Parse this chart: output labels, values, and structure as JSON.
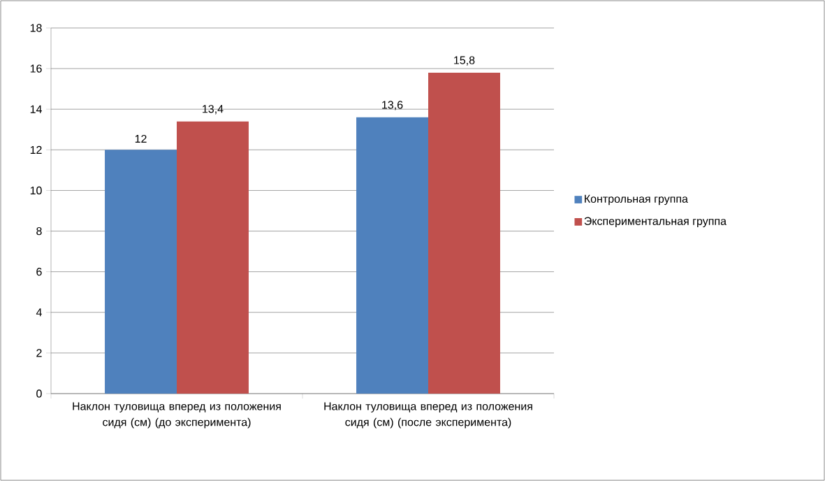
{
  "chart_data": {
    "type": "bar",
    "categories": [
      "Наклон туловища вперед из положения сидя (см) (до эксперимента)",
      "Наклон туловища вперед из положения сидя (см) (после эксперимента)"
    ],
    "series": [
      {
        "name": "Контрольная группа",
        "color": "#4f81bd",
        "values": [
          12,
          13.6
        ],
        "value_labels": [
          "12",
          "13,6"
        ]
      },
      {
        "name": "Экспериментальная группа",
        "color": "#c0504d",
        "values": [
          13.4,
          15.8
        ],
        "value_labels": [
          "13,4",
          "15,8"
        ]
      }
    ],
    "ylim": [
      0,
      18
    ],
    "yticks": [
      0,
      2,
      4,
      6,
      8,
      10,
      12,
      14,
      16,
      18
    ],
    "grid": "y",
    "legend": "right"
  }
}
